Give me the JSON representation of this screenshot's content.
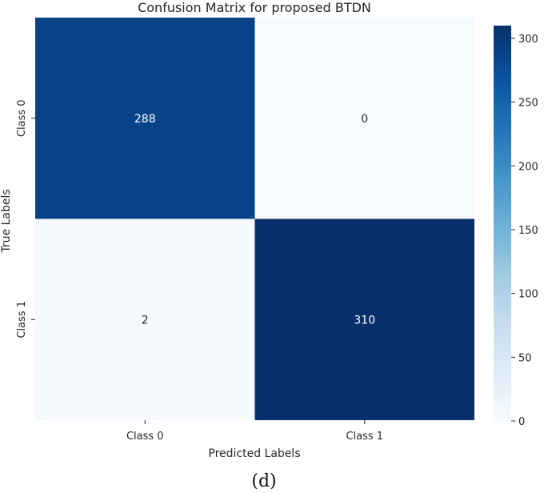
{
  "chart_data": {
    "type": "heatmap",
    "title": "Confusion Matrix for proposed BTDN",
    "xlabel": "Predicted Labels",
    "ylabel": "True Labels",
    "x_categories": [
      "Class 0",
      "Class 1"
    ],
    "y_categories": [
      "Class 0",
      "Class 1"
    ],
    "values": [
      [
        288,
        0
      ],
      [
        2,
        310
      ]
    ],
    "colormap": "Blues",
    "color_range": [
      0,
      310
    ],
    "colorbar_ticks": [
      0,
      50,
      100,
      150,
      200,
      250,
      300
    ],
    "colors": {
      "low": "#f7fbff",
      "high": "#08306b"
    },
    "annotate": true
  },
  "caption": "(d)"
}
